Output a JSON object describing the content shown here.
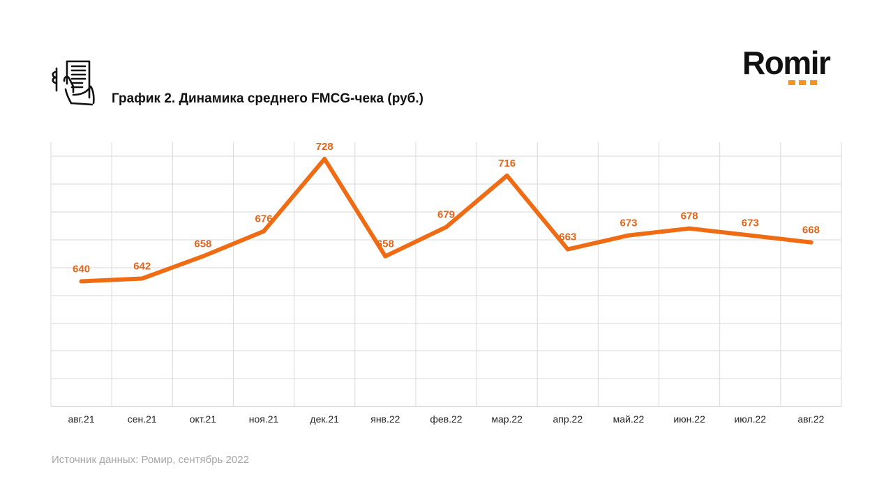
{
  "title": "График 2. Динамика среднего FMCG-чека (руб.)",
  "brand": {
    "name": "Romir",
    "accent_color": "#f7941d"
  },
  "icon": "receipt-hand-icon",
  "source": "Источник данных: Ромир, сентябрь 2022",
  "colors": {
    "line": "#ef6c14",
    "label": "#e5651a",
    "grid": "#d9d9d9",
    "axis_text": "#222222"
  },
  "chart_data": {
    "type": "line",
    "title": "График 2. Динамика среднего FMCG-чека (руб.)",
    "categories": [
      "авг.21",
      "сен.21",
      "окт.21",
      "ноя.21",
      "дек.21",
      "янв.22",
      "фев.22",
      "мар.22",
      "апр.22",
      "май.22",
      "июн.22",
      "июл.22",
      "авг.22"
    ],
    "series": [
      {
        "values": [
          640,
          642,
          658,
          676,
          728,
          658,
          679,
          716,
          663,
          673,
          678,
          673,
          668
        ]
      }
    ],
    "data_labels": [
      "640",
      "642",
      "658",
      "676",
      "728",
      "658",
      "679",
      "716",
      "663",
      "673",
      "678",
      "673",
      "668"
    ],
    "ylim": [
      550,
      740
    ],
    "grid": true,
    "legend": "none",
    "xlabel": "",
    "ylabel": ""
  }
}
